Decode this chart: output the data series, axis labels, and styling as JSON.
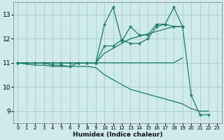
{
  "xlabel": "Humidex (Indice chaleur)",
  "bg_color": "#ceeaea",
  "grid_color": "#aed0d0",
  "line_color": "#1a7a6e",
  "xlim": [
    -0.5,
    23.5
  ],
  "ylim": [
    8.5,
    13.5
  ],
  "xticks": [
    0,
    1,
    2,
    3,
    4,
    5,
    6,
    7,
    8,
    9,
    10,
    11,
    12,
    13,
    14,
    15,
    16,
    17,
    18,
    19,
    20,
    21,
    22,
    23
  ],
  "yticks": [
    9,
    10,
    11,
    12,
    13
  ],
  "lines": [
    {
      "x": [
        0,
        1,
        2,
        3,
        4,
        5,
        6,
        7,
        8,
        9,
        10,
        11,
        12,
        13,
        14,
        15,
        16,
        17,
        18,
        19,
        20,
        21,
        22,
        23
      ],
      "y": [
        11.0,
        11.0,
        11.0,
        11.0,
        11.0,
        11.0,
        11.0,
        11.0,
        11.0,
        11.0,
        11.0,
        11.0,
        11.0,
        11.0,
        11.0,
        11.0,
        11.0,
        11.0,
        11.0,
        11.2,
        null,
        null,
        null,
        null
      ],
      "marker": false
    },
    {
      "x": [
        0,
        1,
        2,
        3,
        4,
        5,
        6,
        7,
        8,
        9,
        10,
        11,
        12,
        13,
        14,
        15,
        16,
        17,
        18,
        19,
        20,
        21,
        22,
        23
      ],
      "y": [
        11.0,
        11.0,
        11.0,
        11.0,
        11.0,
        11.0,
        11.0,
        11.0,
        11.0,
        11.0,
        11.4,
        11.6,
        11.8,
        12.0,
        12.1,
        12.2,
        12.3,
        12.4,
        12.5,
        12.5,
        null,
        null,
        null,
        null
      ],
      "marker": false
    },
    {
      "x": [
        0,
        1,
        2,
        3,
        4,
        5,
        6,
        7,
        8,
        9,
        10,
        11,
        12,
        13,
        14,
        15,
        16,
        17,
        18,
        19,
        20,
        21,
        22,
        23
      ],
      "y": [
        11.0,
        11.0,
        11.0,
        11.0,
        11.0,
        11.0,
        11.0,
        11.0,
        11.0,
        11.0,
        12.6,
        13.3,
        11.9,
        12.5,
        12.15,
        12.15,
        12.6,
        12.6,
        13.3,
        12.5,
        9.65,
        8.85,
        8.85,
        null
      ],
      "marker": true
    },
    {
      "x": [
        0,
        1,
        2,
        3,
        4,
        5,
        6,
        7,
        8,
        9,
        10,
        11,
        12,
        13,
        14,
        15,
        16,
        17,
        18,
        19,
        20,
        21,
        22,
        23
      ],
      "y": [
        11.0,
        10.95,
        10.9,
        10.9,
        10.85,
        10.85,
        10.85,
        10.85,
        10.85,
        10.8,
        10.5,
        10.3,
        10.1,
        9.9,
        9.8,
        9.7,
        9.6,
        9.5,
        9.4,
        9.3,
        9.1,
        9.0,
        9.0,
        null
      ],
      "marker": false
    },
    {
      "x": [
        0,
        1,
        2,
        3,
        4,
        5,
        6,
        7,
        8,
        9,
        10,
        11,
        12,
        13,
        14,
        15,
        16,
        17,
        18,
        19,
        20,
        21,
        22,
        23
      ],
      "y": [
        11.0,
        11.0,
        11.0,
        11.0,
        10.9,
        10.9,
        10.85,
        11.0,
        11.0,
        11.0,
        11.7,
        11.7,
        11.95,
        11.8,
        11.8,
        12.0,
        12.5,
        12.6,
        12.5,
        12.5,
        null,
        null,
        null,
        null
      ],
      "marker": true
    }
  ]
}
